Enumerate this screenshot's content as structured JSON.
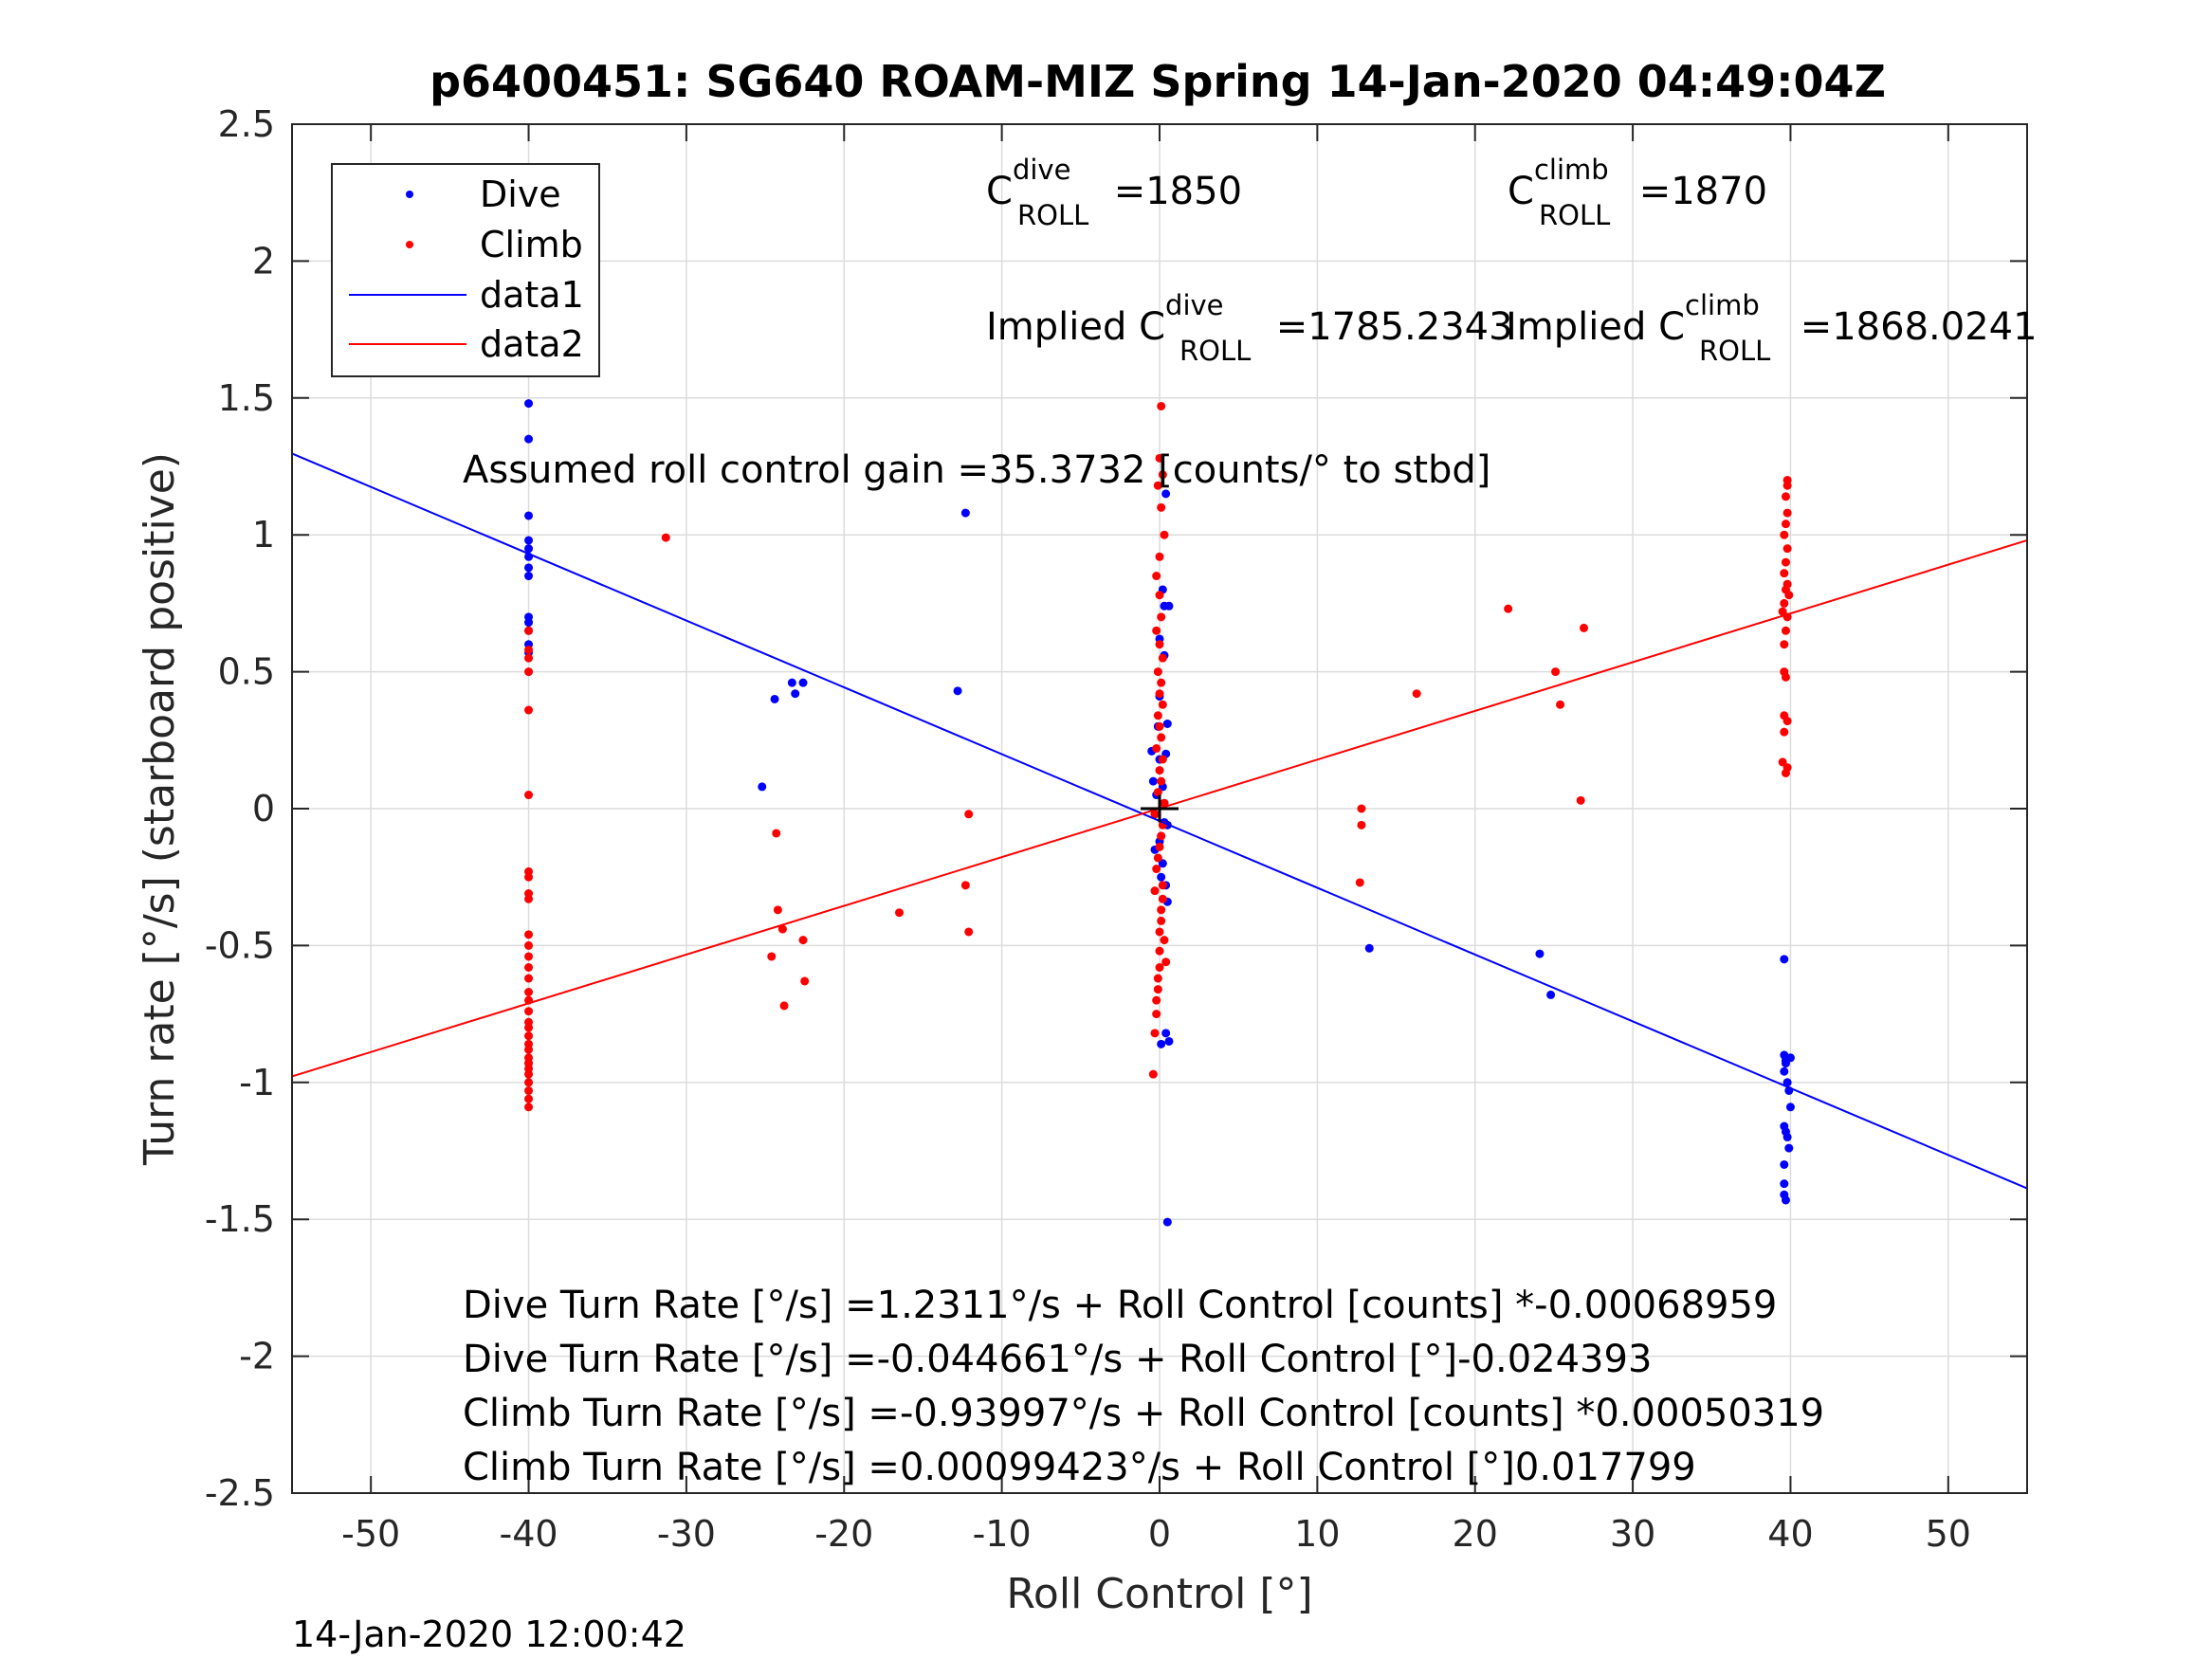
{
  "title": "p6400451: SG640 ROAM-MIZ Spring 14-Jan-2020 04:49:04Z",
  "timestamp": "14-Jan-2020 12:00:42",
  "colors": {
    "dive": "#0000ff",
    "climb": "#ff0000",
    "grid": "#dcdcdc",
    "axis": "#262626"
  },
  "annotations": {
    "c_dive": {
      "prefix": "C",
      "sup": "dive",
      "sub": "ROLL",
      "value": " =1850"
    },
    "c_climb": {
      "prefix": "C",
      "sup": "climb",
      "sub": "ROLL",
      "value": " =1870"
    },
    "implied_dive": {
      "prefix": "Implied C",
      "sup": "dive",
      "sub": "ROLL",
      "value": " =1785.2343"
    },
    "implied_climb": {
      "prefix": "Implied C",
      "sup": "climb",
      "sub": "ROLL",
      "value": " =1868.0241"
    },
    "gain": "Assumed roll control gain =35.3732 [counts/° to stbd]",
    "eq_dive_counts": "Dive Turn Rate [°/s] =1.2311°/s + Roll Control [counts] *-0.00068959",
    "eq_dive_deg": "Dive Turn Rate [°/s] =-0.044661°/s + Roll Control [°]-0.024393",
    "eq_climb_counts": "Climb Turn Rate [°/s] =-0.93997°/s + Roll Control [counts] *0.00050319",
    "eq_climb_deg": "Climb Turn Rate [°/s] =0.00099423°/s + Roll Control [°]0.017799"
  },
  "chart_data": {
    "type": "scatter",
    "title": "p6400451: SG640 ROAM-MIZ Spring 14-Jan-2020 04:49:04Z",
    "xlabel": "Roll Control [°]",
    "ylabel": "Turn rate [°/s] (starboard positive)",
    "xlim": [
      -55,
      55
    ],
    "ylim": [
      -2.5,
      2.5
    ],
    "xticks": [
      -50,
      -40,
      -30,
      -20,
      -10,
      0,
      10,
      20,
      30,
      40,
      50
    ],
    "yticks": [
      2.5,
      2,
      1.5,
      1,
      0.5,
      0,
      -0.5,
      -1,
      -1.5,
      -2,
      -2.5
    ],
    "xtick_labels": [
      "-50",
      "-40",
      "-30",
      "-20",
      "-10",
      "0",
      "10",
      "20",
      "30",
      "40",
      "50"
    ],
    "ytick_labels": [
      "2.5",
      "2",
      "1.5",
      "1",
      "0.5",
      "0",
      "-0.5",
      "-1",
      "-1.5",
      "-2",
      "-2.5"
    ],
    "grid": true,
    "legend_position": "top-left",
    "series": [
      {
        "name": "Dive",
        "kind": "points",
        "color": "#0000ff",
        "points": [
          [
            -40,
            1.48
          ],
          [
            -40,
            1.35
          ],
          [
            -40,
            1.07
          ],
          [
            -40,
            0.98
          ],
          [
            -40,
            0.95
          ],
          [
            -40,
            0.92
          ],
          [
            -40,
            0.88
          ],
          [
            -40,
            0.85
          ],
          [
            -40,
            0.7
          ],
          [
            -40,
            0.68
          ],
          [
            -40,
            0.65
          ],
          [
            -40,
            0.6
          ],
          [
            -40,
            0.57
          ],
          [
            -25.2,
            0.08
          ],
          [
            -24.4,
            0.4
          ],
          [
            -23.3,
            0.46
          ],
          [
            -23.1,
            0.42
          ],
          [
            -22.6,
            0.46
          ],
          [
            -12.8,
            0.43
          ],
          [
            -12.3,
            1.08
          ],
          [
            -0.5,
            0.21
          ],
          [
            -0.4,
            0.1
          ],
          [
            -0.3,
            -0.02
          ],
          [
            -0.3,
            -0.15
          ],
          [
            -0.2,
            0.05
          ],
          [
            -0.1,
            0.3
          ],
          [
            0,
            0.62
          ],
          [
            0,
            0.41
          ],
          [
            0,
            0.18
          ],
          [
            0.1,
            -0.1
          ],
          [
            0.1,
            -0.86
          ],
          [
            0.2,
            0.8
          ],
          [
            0.2,
            -0.2
          ],
          [
            0.3,
            0.74
          ],
          [
            0.3,
            0.56
          ],
          [
            0.3,
            0.02
          ],
          [
            0.4,
            -0.82
          ],
          [
            0.4,
            1.15
          ],
          [
            0.4,
            0.2
          ],
          [
            0.5,
            -0.34
          ],
          [
            0.5,
            0.31
          ],
          [
            0.5,
            -1.51
          ],
          [
            0.6,
            0.74
          ],
          [
            0.6,
            -0.85
          ],
          [
            0.3,
            -0.05
          ],
          [
            0.2,
            0.08
          ],
          [
            0.1,
            -0.25
          ],
          [
            0.4,
            -0.28
          ],
          [
            0,
            -0.12
          ],
          [
            0.5,
            -0.06
          ],
          [
            13.3,
            -0.51
          ],
          [
            24.1,
            -0.53
          ],
          [
            24.8,
            -0.68
          ],
          [
            39.6,
            -0.55
          ],
          [
            39.6,
            -0.9
          ],
          [
            39.6,
            -0.96
          ],
          [
            39.7,
            -0.92
          ],
          [
            39.8,
            -1.0
          ],
          [
            39.9,
            -1.03
          ],
          [
            40.0,
            -1.09
          ],
          [
            39.6,
            -1.16
          ],
          [
            39.7,
            -1.18
          ],
          [
            39.8,
            -1.2
          ],
          [
            39.9,
            -1.24
          ],
          [
            39.6,
            -1.3
          ],
          [
            39.6,
            -1.37
          ],
          [
            39.6,
            -1.41
          ],
          [
            39.7,
            -1.43
          ],
          [
            39.7,
            -0.93
          ],
          [
            40.0,
            -0.91
          ]
        ]
      },
      {
        "name": "Climb",
        "kind": "points",
        "color": "#ff0000",
        "points": [
          [
            -40,
            0.65
          ],
          [
            -40,
            0.58
          ],
          [
            -40,
            0.55
          ],
          [
            -40,
            0.5
          ],
          [
            -40,
            0.36
          ],
          [
            -40,
            0.05
          ],
          [
            -40,
            -0.23
          ],
          [
            -40,
            -0.25
          ],
          [
            -40,
            -0.31
          ],
          [
            -40,
            -0.33
          ],
          [
            -40,
            -0.46
          ],
          [
            -40,
            -0.5
          ],
          [
            -40,
            -0.54
          ],
          [
            -40,
            -0.58
          ],
          [
            -40,
            -0.62
          ],
          [
            -40,
            -0.67
          ],
          [
            -40,
            -0.7
          ],
          [
            -40,
            -0.74
          ],
          [
            -40,
            -0.78
          ],
          [
            -40,
            -0.8
          ],
          [
            -40,
            -0.83
          ],
          [
            -40,
            -0.86
          ],
          [
            -40,
            -0.88
          ],
          [
            -40,
            -0.91
          ],
          [
            -40,
            -0.93
          ],
          [
            -40,
            -0.95
          ],
          [
            -40,
            -0.97
          ],
          [
            -40,
            -1.0
          ],
          [
            -40,
            -1.03
          ],
          [
            -40,
            -1.06
          ],
          [
            -40,
            -1.09
          ],
          [
            -31.3,
            0.99
          ],
          [
            -24.6,
            -0.54
          ],
          [
            -24.3,
            -0.09
          ],
          [
            -24.2,
            -0.37
          ],
          [
            -23.9,
            -0.44
          ],
          [
            -23.8,
            -0.72
          ],
          [
            -22.6,
            -0.48
          ],
          [
            -22.5,
            -0.63
          ],
          [
            -16.5,
            -0.38
          ],
          [
            -12.3,
            -0.28
          ],
          [
            -12.1,
            -0.02
          ],
          [
            -12.1,
            -0.45
          ],
          [
            -0.4,
            -0.97
          ],
          [
            -0.3,
            -0.82
          ],
          [
            -0.2,
            -0.75
          ],
          [
            -0.2,
            -0.7
          ],
          [
            -0.1,
            -0.66
          ],
          [
            -0.1,
            -0.62
          ],
          [
            0,
            -0.58
          ],
          [
            0,
            -0.52
          ],
          [
            0,
            -0.45
          ],
          [
            0.1,
            -0.41
          ],
          [
            0.1,
            -0.37
          ],
          [
            0.2,
            -0.33
          ],
          [
            0.2,
            -0.28
          ],
          [
            -0.2,
            -0.22
          ],
          [
            -0.1,
            -0.18
          ],
          [
            0,
            -0.14
          ],
          [
            0.1,
            -0.1
          ],
          [
            0.2,
            -0.06
          ],
          [
            -0.3,
            -0.02
          ],
          [
            0.3,
            0.02
          ],
          [
            -0.1,
            0.06
          ],
          [
            0.1,
            0.1
          ],
          [
            0,
            0.14
          ],
          [
            0.2,
            0.18
          ],
          [
            -0.2,
            0.22
          ],
          [
            0.1,
            0.26
          ],
          [
            0,
            0.3
          ],
          [
            -0.1,
            0.34
          ],
          [
            0.2,
            0.38
          ],
          [
            0,
            0.42
          ],
          [
            0.1,
            0.46
          ],
          [
            -0.1,
            0.5
          ],
          [
            0.2,
            0.55
          ],
          [
            0,
            0.6
          ],
          [
            -0.2,
            0.65
          ],
          [
            0.1,
            0.7
          ],
          [
            0,
            0.78
          ],
          [
            -0.2,
            0.85
          ],
          [
            0,
            0.92
          ],
          [
            0.3,
            1.0
          ],
          [
            0.1,
            1.1
          ],
          [
            -0.1,
            1.18
          ],
          [
            0.2,
            1.22
          ],
          [
            0,
            1.28
          ],
          [
            0.1,
            1.47
          ],
          [
            -0.3,
            -0.3
          ],
          [
            0.3,
            -0.48
          ],
          [
            0.4,
            -0.56
          ],
          [
            12.7,
            -0.27
          ],
          [
            12.8,
            -0.06
          ],
          [
            12.8,
            0.0
          ],
          [
            16.3,
            0.42
          ],
          [
            22.1,
            0.73
          ],
          [
            25.1,
            0.5
          ],
          [
            25.4,
            0.38
          ],
          [
            26.7,
            0.03
          ],
          [
            26.9,
            0.66
          ],
          [
            39.5,
            0.17
          ],
          [
            39.6,
            0.28
          ],
          [
            39.6,
            0.34
          ],
          [
            39.7,
            0.13
          ],
          [
            39.8,
            0.15
          ],
          [
            39.6,
            0.5
          ],
          [
            39.7,
            0.48
          ],
          [
            39.8,
            0.32
          ],
          [
            39.6,
            0.6
          ],
          [
            39.7,
            0.65
          ],
          [
            39.8,
            0.7
          ],
          [
            39.6,
            0.75
          ],
          [
            39.7,
            0.8
          ],
          [
            39.8,
            0.82
          ],
          [
            39.6,
            0.86
          ],
          [
            39.7,
            0.9
          ],
          [
            39.8,
            0.95
          ],
          [
            39.6,
            1.0
          ],
          [
            39.7,
            1.04
          ],
          [
            39.8,
            1.08
          ],
          [
            39.7,
            1.14
          ],
          [
            39.8,
            1.18
          ],
          [
            39.8,
            1.2
          ],
          [
            39.5,
            0.72
          ],
          [
            39.9,
            0.78
          ]
        ]
      },
      {
        "name": "data1",
        "kind": "line",
        "color": "#0000ff",
        "x": [
          -55,
          55
        ],
        "y": [
          1.297,
          -1.387
        ]
      },
      {
        "name": "data2",
        "kind": "line",
        "color": "#ff0000",
        "x": [
          -55,
          55
        ],
        "y": [
          -0.978,
          0.98
        ]
      }
    ],
    "legend": [
      "Dive",
      "Climb",
      "data1",
      "data2"
    ]
  }
}
